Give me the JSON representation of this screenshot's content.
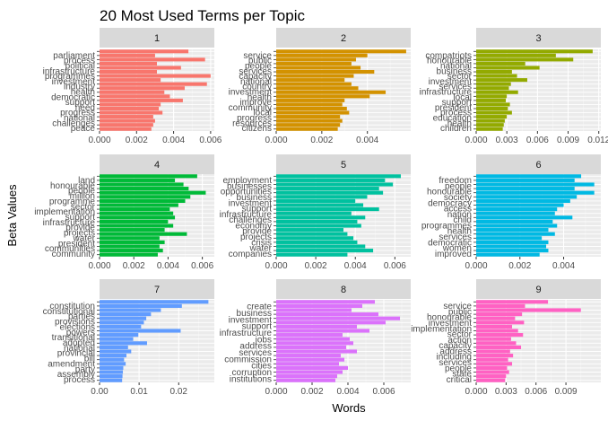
{
  "chart_data": {
    "type": "bar",
    "orientation": "horizontal",
    "faceted": true,
    "title": "20 Most Used Terms per Topic",
    "xlabel": "Words",
    "ylabel": "Beta Values",
    "grid": true,
    "legend": "none",
    "panels": [
      {
        "strip": "1",
        "color": "#F8766D",
        "xlim": [
          0,
          0.0062
        ],
        "ticks": [
          0,
          0.002,
          0.004,
          0.006
        ],
        "tick_labels": [
          "0.000",
          "0.002",
          "0.004",
          "0.006"
        ],
        "shown_labels": [
          "parliament",
          "process",
          "political",
          "infrastructure",
          "programmes",
          "investment",
          "industry",
          "health",
          "democratic",
          "support",
          "need",
          "progress",
          "national",
          "challenges",
          "peace"
        ],
        "values": [
          0.0048,
          0.003,
          0.0057,
          0.0031,
          0.0044,
          0.0031,
          0.006,
          0.0033,
          0.0058,
          0.0046,
          0.0035,
          0.0038,
          0.0045,
          0.0033,
          0.0032,
          0.0034,
          0.0029,
          0.003,
          0.0029,
          0.0028
        ]
      },
      {
        "strip": "2",
        "color": "#D39200",
        "xlim": [
          0,
          0.0059
        ],
        "ticks": [
          0,
          0.002,
          0.004
        ],
        "tick_labels": [
          "0.000",
          "0.002",
          "0.004"
        ],
        "shown_labels": [
          "service",
          "public",
          "people",
          "services",
          "capacity",
          "national",
          "country",
          "investment",
          "health",
          "improve",
          "community",
          "local",
          "progress",
          "resources",
          "citizens"
        ],
        "values": [
          0.0057,
          0.004,
          0.0035,
          0.0033,
          0.0037,
          0.0043,
          0.0034,
          0.003,
          0.0033,
          0.0036,
          0.0048,
          0.0041,
          0.003,
          0.0029,
          0.0031,
          0.0032,
          0.0028,
          0.0029,
          0.0028,
          0.0027
        ]
      },
      {
        "strip": "3",
        "color": "#93AA00",
        "xlim": [
          0,
          0.0122
        ],
        "ticks": [
          0,
          0.003,
          0.006,
          0.009,
          0.012
        ],
        "tick_labels": [
          "0.000",
          "0.003",
          "0.006",
          "0.009",
          "0.012"
        ],
        "shown_labels": [
          "compatriots",
          "honourable",
          "national",
          "business",
          "sector",
          "investment",
          "services",
          "infrastructure",
          "local",
          "support",
          "president",
          "process",
          "education",
          "health",
          "children"
        ],
        "values": [
          0.0114,
          0.0078,
          0.0095,
          0.0048,
          0.0062,
          0.0035,
          0.004,
          0.005,
          0.0034,
          0.0032,
          0.0041,
          0.003,
          0.0029,
          0.0033,
          0.0031,
          0.0035,
          0.003,
          0.0028,
          0.0027,
          0.0026
        ]
      },
      {
        "strip": "4",
        "color": "#00BA38",
        "xlim": [
          0,
          0.0067
        ],
        "ticks": [
          0,
          0.002,
          0.004,
          0.006
        ],
        "tick_labels": [
          "0.000",
          "0.002",
          "0.004",
          "0.006"
        ],
        "shown_labels": [
          "land",
          "honourable",
          "people",
          "million",
          "programme",
          "sector",
          "implementation",
          "support",
          "infrastructure",
          "provide",
          "projects",
          "water",
          "president",
          "communities",
          "community"
        ],
        "values": [
          0.0057,
          0.0044,
          0.0049,
          0.0052,
          0.0062,
          0.0053,
          0.005,
          0.0046,
          0.0041,
          0.0043,
          0.0044,
          0.004,
          0.0043,
          0.0038,
          0.0051,
          0.0035,
          0.0038,
          0.0035,
          0.0037,
          0.0034
        ]
      },
      {
        "strip": "5",
        "color": "#00C19F",
        "xlim": [
          0,
          0.0068
        ],
        "ticks": [
          0,
          0.002,
          0.004,
          0.006
        ],
        "tick_labels": [
          "0.000",
          "0.002",
          "0.004",
          "0.006"
        ],
        "shown_labels": [
          "employment",
          "businesses",
          "opportunities",
          "business",
          "investment",
          "support",
          "infrastructure",
          "challenges",
          "economy",
          "provide",
          "projects",
          "crisis",
          "water",
          "companies"
        ],
        "values": [
          0.0063,
          0.0055,
          0.0059,
          0.0052,
          0.0054,
          0.0046,
          0.004,
          0.0044,
          0.0052,
          0.0038,
          0.0045,
          0.0041,
          0.0043,
          0.0034,
          0.0036,
          0.0039,
          0.0041,
          0.0045,
          0.0049,
          0.0036
        ]
      },
      {
        "strip": "6",
        "color": "#00B9E3",
        "xlim": [
          0,
          0.0057
        ],
        "ticks": [
          0,
          0.002,
          0.004
        ],
        "tick_labels": [
          "0.000",
          "0.002",
          "0.004"
        ],
        "shown_labels": [
          "freedom",
          "people",
          "honourable",
          "society",
          "democracy",
          "access",
          "nation",
          "child",
          "programmes",
          "health",
          "services",
          "democratic",
          "women",
          "improved"
        ],
        "values": [
          0.0048,
          0.0045,
          0.0054,
          0.0045,
          0.0054,
          0.0046,
          0.0043,
          0.004,
          0.0037,
          0.0036,
          0.0044,
          0.0035,
          0.0037,
          0.0033,
          0.0036,
          0.003,
          0.0033,
          0.0032,
          0.0033,
          0.0029
        ]
      },
      {
        "strip": "7",
        "color": "#619CFF",
        "xlim": [
          0,
          0.029
        ],
        "ticks": [
          0,
          0.01,
          0.02
        ],
        "tick_labels": [
          "0.00",
          "0.01",
          "0.02"
        ],
        "shown_labels": [
          "constitution",
          "constitutional",
          "parties",
          "provisions",
          "elections",
          "powers",
          "transitional",
          "adopted",
          "national",
          "provincial",
          "bill",
          "amendment",
          "party",
          "assembly",
          "process"
        ],
        "values": [
          0.0275,
          0.0208,
          0.0155,
          0.013,
          0.0118,
          0.0112,
          0.0105,
          0.0205,
          0.0098,
          0.0085,
          0.012,
          0.0072,
          0.008,
          0.0068,
          0.0062,
          0.0066,
          0.006,
          0.0059,
          0.0058,
          0.0057
        ]
      },
      {
        "strip": "8",
        "color": "#DB72FB",
        "xlim": [
          0,
          0.0075
        ],
        "ticks": [
          0,
          0.002,
          0.004,
          0.006
        ],
        "tick_labels": [
          "0.000",
          "0.002",
          "0.004",
          "0.006"
        ],
        "shown_labels": [
          "create",
          "business",
          "investment",
          "support",
          "infrastructure",
          "jobs",
          "address",
          "services",
          "commission",
          "cities",
          "corruption",
          "institutions"
        ],
        "values": [
          0.0055,
          0.0048,
          0.0042,
          0.0057,
          0.0069,
          0.0061,
          0.0045,
          0.0052,
          0.0037,
          0.0041,
          0.0043,
          0.0039,
          0.0045,
          0.0036,
          0.0038,
          0.0035,
          0.004,
          0.0037,
          0.0034,
          0.0033
        ]
      },
      {
        "strip": "9",
        "color": "#FF61C3",
        "xlim": [
          0,
          0.0125
        ],
        "ticks": [
          0,
          0.003,
          0.006,
          0.009
        ],
        "tick_labels": [
          "0.000",
          "0.003",
          "0.006",
          "0.009"
        ],
        "shown_labels": [
          "service",
          "public",
          "honourable",
          "investment",
          "implementation",
          "sector",
          "action",
          "capacity",
          "address",
          "including",
          "services",
          "people",
          "state",
          "critical"
        ],
        "values": [
          0.0072,
          0.0049,
          0.0105,
          0.0046,
          0.0039,
          0.0048,
          0.0036,
          0.0042,
          0.0047,
          0.0035,
          0.004,
          0.0045,
          0.0034,
          0.0037,
          0.0032,
          0.0036,
          0.0031,
          0.0033,
          0.003,
          0.0029
        ]
      }
    ]
  }
}
